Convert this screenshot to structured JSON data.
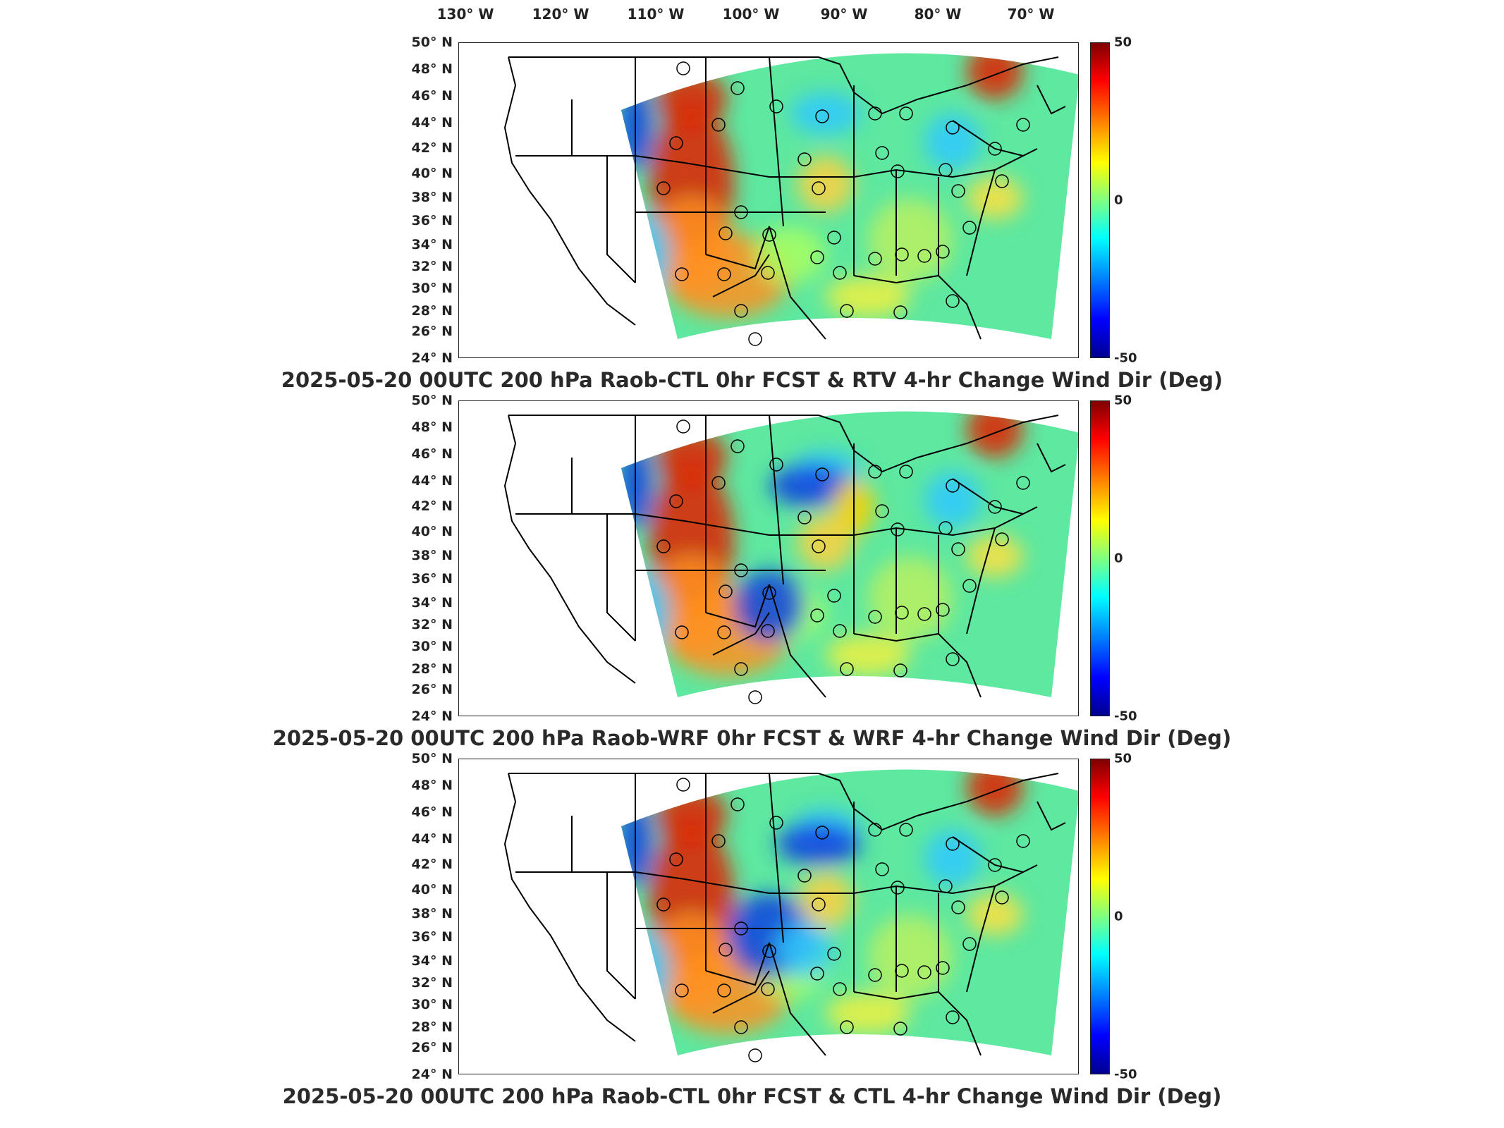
{
  "longitude_labels": [
    "130° W",
    "120° W",
    "110° W",
    "100° W",
    "90° W",
    "80° W",
    "70° W"
  ],
  "latitude_labels": [
    "50° N",
    "48° N",
    "46° N",
    "44° N",
    "42° N",
    "40° N",
    "38° N",
    "36° N",
    "34° N",
    "32° N",
    "30° N",
    "28° N",
    "26° N",
    "24° N"
  ],
  "colorbar": {
    "max": "50",
    "mid": "0",
    "min": "-50",
    "colormap": "jet"
  },
  "panels": [
    {
      "title": "2025-05-20 00UTC 200 hPa Raob-CTL 0hr FCST & RTV 4-hr Change Wind Dir (Deg)"
    },
    {
      "title": "2025-05-20 00UTC 200 hPa Raob-WRF 0hr FCST & WRF 4-hr Change Wind Dir (Deg)"
    },
    {
      "title": "2025-05-20 00UTC 200 hPa Raob-CTL 0hr FCST & CTL 4-hr Change Wind Dir (Deg)"
    }
  ],
  "colors": {
    "field_base": "#5ee8a0",
    "warm": "#ff9020",
    "hot": "#e02000",
    "cool": "#30c8ff",
    "cold": "#1040e0"
  }
}
